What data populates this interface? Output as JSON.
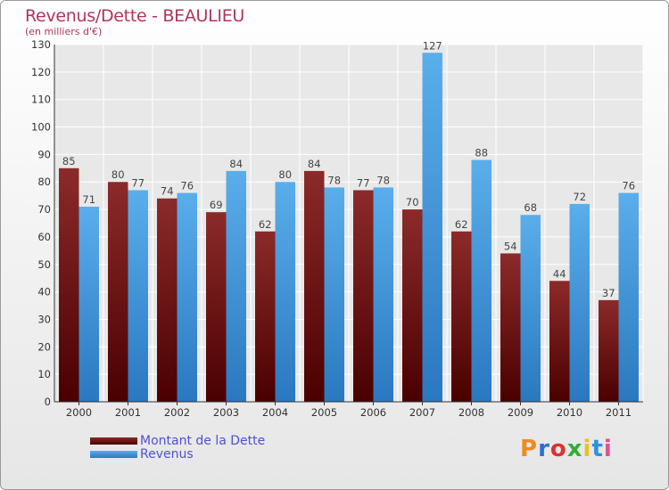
{
  "header": {
    "title": "Revenus/Dette - BEAULIEU",
    "subtitle": "(en milliers d'€)"
  },
  "logo": {
    "text": "Proxiti",
    "colors": [
      "#f08a1c",
      "#2d6fd0",
      "#e03030",
      "#30b030",
      "#f0c020",
      "#3090e0",
      "#e05090"
    ]
  },
  "chart_data": {
    "type": "bar",
    "categories": [
      "2000",
      "2001",
      "2002",
      "2003",
      "2004",
      "2005",
      "2006",
      "2007",
      "2008",
      "2009",
      "2010",
      "2011"
    ],
    "series": [
      {
        "name": "Montant de la Dette",
        "color": "#7a1818",
        "values": [
          85,
          80,
          74,
          69,
          62,
          84,
          77,
          70,
          62,
          54,
          44,
          37
        ]
      },
      {
        "name": "Revenus",
        "color": "#4aa0e0",
        "values": [
          71,
          77,
          76,
          84,
          80,
          78,
          78,
          127,
          88,
          68,
          72,
          76
        ]
      }
    ],
    "ylim": [
      0,
      130
    ],
    "yticks": [
      0,
      10,
      20,
      30,
      40,
      50,
      60,
      70,
      80,
      90,
      100,
      110,
      120,
      130
    ],
    "grid": true,
    "legend_position": "bottom-left"
  }
}
